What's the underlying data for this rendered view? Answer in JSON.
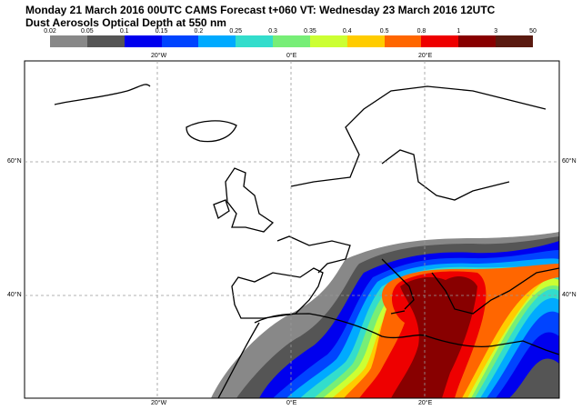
{
  "title": "Monday 21 March 2016 00UTC CAMS Forecast t+060 VT: Wednesday 23 March 2016 12UTC",
  "subtitle": "Dust Aerosols Optical Depth at 550 nm",
  "legend": {
    "labels": [
      "0.02",
      "0.05",
      "0.1",
      "0.15",
      "0.2",
      "0.25",
      "0.3",
      "0.35",
      "0.4",
      "0.5",
      "0.8",
      "1",
      "3",
      "50"
    ],
    "colors": [
      "#888888",
      "#555555",
      "#0000ee",
      "#0044ff",
      "#00aaff",
      "#33ddcc",
      "#77ee77",
      "#ccff33",
      "#ffcc00",
      "#ff6600",
      "#ee0000",
      "#880000",
      "#5a1a10"
    ]
  },
  "axes": {
    "top": [
      "20°W",
      "0°E",
      "20°E"
    ],
    "bottom": [
      "20°W",
      "0°E",
      "20°E"
    ],
    "left": [
      "60°N",
      "40°N"
    ],
    "right": [
      "60°N",
      "40°N"
    ]
  }
}
